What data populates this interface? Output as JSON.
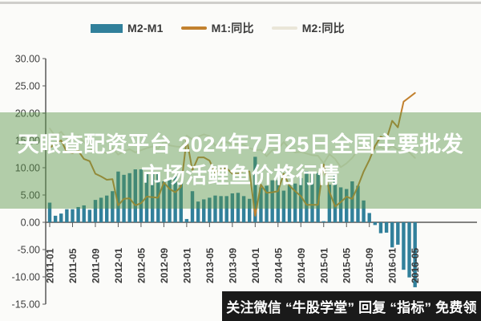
{
  "legend": {
    "items": [
      {
        "label": "M2-M1",
        "swatch": "bar",
        "color": "#31809b"
      },
      {
        "label": "M1:同比",
        "swatch": "line",
        "color": "#c2812f"
      },
      {
        "label": "M2:同比",
        "swatch": "line",
        "color": "#eae6d8"
      }
    ]
  },
  "overlay": {
    "line1": "天眼查配资平台 2024年7月25日全国主要批发",
    "line2": "市场活鲤鱼价格行情",
    "band_color": "rgba(88,148,72,0.45)"
  },
  "banner": {
    "text": "关注微信 “牛股学堂” 回复 “指标” 免费领",
    "bg": "#1a1a1a"
  },
  "chart_data": {
    "type": "bar+line",
    "title": "",
    "xlabel": "",
    "ylabel": "",
    "ylim": [
      -15,
      30
    ],
    "grid": false,
    "legend_position": "top",
    "y_ticks": [
      "30.00",
      "25.00",
      "20.00",
      "15.00",
      "10.00",
      "5.00",
      "0.00",
      "-5.00",
      "-10.00",
      "-15.00"
    ],
    "x_tick_labels": [
      "2011-01",
      "2011-05",
      "2011-09",
      "2012-01",
      "2012-05",
      "2012-09",
      "2013-01",
      "2013-05",
      "2013-09",
      "2014-01",
      "2014-05",
      "2014-09",
      "2015-01",
      "2015-05",
      "2015-09",
      "2016-01",
      "2016-05"
    ],
    "x": [
      "2011-01",
      "2011-02",
      "2011-03",
      "2011-04",
      "2011-05",
      "2011-06",
      "2011-07",
      "2011-08",
      "2011-09",
      "2011-10",
      "2011-11",
      "2011-12",
      "2012-01",
      "2012-02",
      "2012-03",
      "2012-04",
      "2012-05",
      "2012-06",
      "2012-07",
      "2012-08",
      "2012-09",
      "2012-10",
      "2012-11",
      "2012-12",
      "2013-01",
      "2013-02",
      "2013-03",
      "2013-04",
      "2013-05",
      "2013-06",
      "2013-07",
      "2013-08",
      "2013-09",
      "2013-10",
      "2013-11",
      "2013-12",
      "2014-01",
      "2014-02",
      "2014-03",
      "2014-04",
      "2014-05",
      "2014-06",
      "2014-07",
      "2014-08",
      "2014-09",
      "2014-10",
      "2014-11",
      "2014-12",
      "2015-01",
      "2015-02",
      "2015-03",
      "2015-04",
      "2015-05",
      "2015-06",
      "2015-07",
      "2015-08",
      "2015-09",
      "2015-10",
      "2015-11",
      "2015-12",
      "2016-01",
      "2016-02",
      "2016-03",
      "2016-04",
      "2016-05"
    ],
    "series": [
      {
        "name": "M2-M1",
        "type": "bar",
        "color": "#31809b",
        "values": [
          3.6,
          1.2,
          1.6,
          2.4,
          2.4,
          2.8,
          3.1,
          2.3,
          4.1,
          4.5,
          4.9,
          5.7,
          9.3,
          8.7,
          9.0,
          9.7,
          9.7,
          8.9,
          9.3,
          9.0,
          7.5,
          8.0,
          8.4,
          7.3,
          0.6,
          5.7,
          3.8,
          4.2,
          4.5,
          4.9,
          4.8,
          4.8,
          5.3,
          5.4,
          4.8,
          4.3,
          12.0,
          6.4,
          6.7,
          7.7,
          7.7,
          5.8,
          6.8,
          7.1,
          8.1,
          9.4,
          9.1,
          9.0,
          0.2,
          6.9,
          8.7,
          6.4,
          6.1,
          7.5,
          6.7,
          4.0,
          1.7,
          -0.5,
          -2.0,
          -1.9,
          -4.6,
          -4.1,
          -8.7,
          -10.1,
          -11.9
        ]
      },
      {
        "name": "M1:同比",
        "type": "line",
        "color": "#c2812f",
        "values": [
          13.6,
          14.5,
          15.0,
          12.9,
          12.7,
          13.1,
          11.6,
          11.2,
          8.9,
          8.4,
          7.8,
          7.9,
          3.1,
          4.3,
          4.4,
          3.1,
          3.5,
          4.7,
          4.6,
          4.5,
          7.3,
          6.1,
          5.5,
          6.5,
          15.3,
          9.5,
          11.9,
          11.9,
          11.3,
          9.1,
          9.7,
          9.9,
          8.9,
          8.9,
          9.4,
          9.3,
          1.2,
          6.9,
          5.4,
          5.5,
          5.7,
          8.9,
          6.7,
          5.7,
          4.8,
          3.2,
          3.2,
          3.2,
          10.6,
          5.6,
          2.9,
          3.7,
          4.7,
          4.3,
          6.6,
          9.3,
          11.4,
          14.0,
          15.7,
          15.2,
          18.6,
          17.4,
          22.1,
          22.9,
          23.7
        ]
      },
      {
        "name": "M2:同比",
        "type": "line",
        "color": "#eae6d8",
        "values": [
          17.2,
          15.7,
          16.6,
          15.3,
          15.1,
          15.9,
          14.7,
          13.5,
          13.0,
          12.9,
          12.7,
          13.6,
          12.4,
          13.0,
          13.4,
          12.8,
          13.2,
          13.6,
          13.9,
          13.5,
          14.8,
          14.1,
          13.9,
          13.8,
          15.9,
          15.2,
          15.7,
          16.1,
          15.8,
          14.0,
          14.5,
          14.7,
          14.2,
          14.3,
          14.2,
          13.6,
          13.2,
          13.3,
          12.1,
          13.2,
          13.4,
          14.7,
          13.5,
          12.8,
          12.9,
          12.6,
          12.3,
          12.2,
          10.8,
          12.5,
          11.6,
          10.1,
          10.8,
          11.8,
          13.3,
          13.3,
          13.1,
          13.5,
          13.7,
          13.3,
          14.0,
          13.3,
          13.4,
          12.8,
          11.8
        ]
      }
    ]
  }
}
